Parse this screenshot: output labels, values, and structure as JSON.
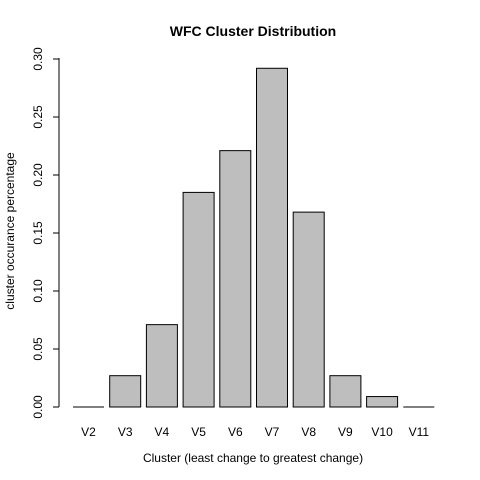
{
  "chart_data": {
    "type": "bar",
    "title": "WFC Cluster Distribution",
    "xlabel": "Cluster (least change to greatest change)",
    "ylabel": "cluster occurance percentage",
    "categories": [
      "V2",
      "V3",
      "V4",
      "V5",
      "V6",
      "V7",
      "V8",
      "V9",
      "V10",
      "V11"
    ],
    "values": [
      0.0,
      0.027,
      0.071,
      0.185,
      0.221,
      0.292,
      0.168,
      0.027,
      0.009,
      0.0
    ],
    "ylim": [
      0,
      0.3
    ],
    "yticks": [
      "0.00",
      "0.05",
      "0.10",
      "0.15",
      "0.20",
      "0.25",
      "0.30"
    ],
    "bar_color": "#bebebe",
    "grid": false
  }
}
